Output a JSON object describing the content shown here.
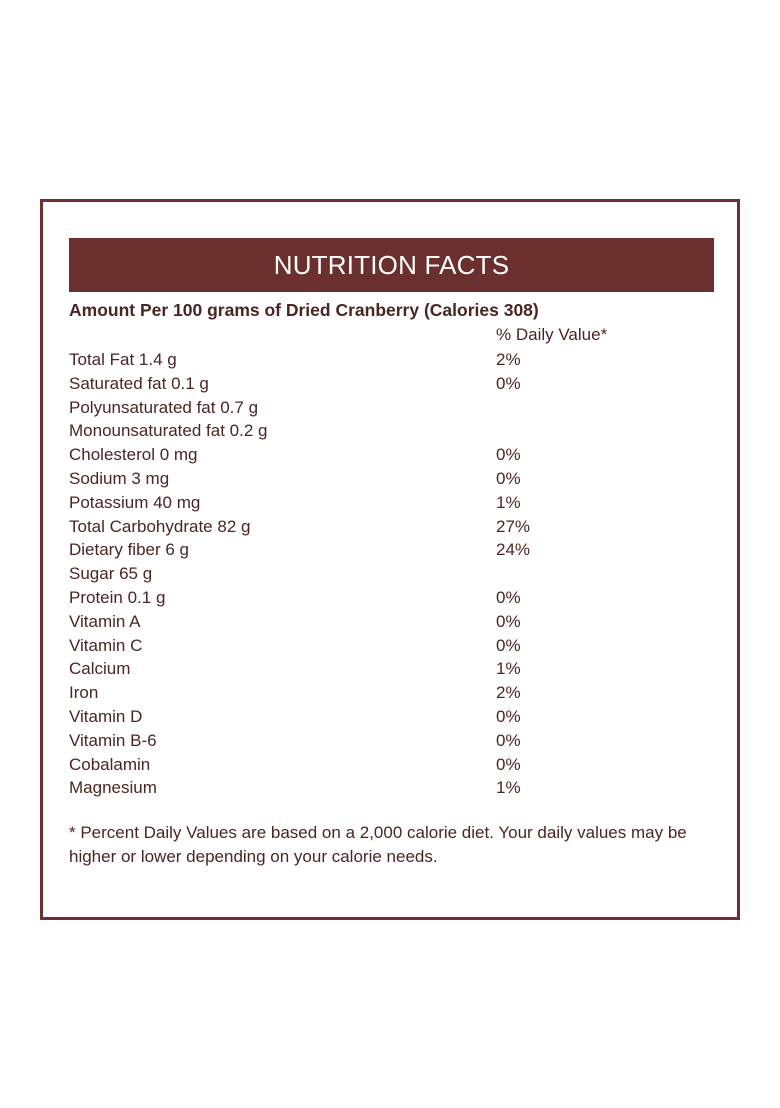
{
  "header": {
    "title": "NUTRITION FACTS"
  },
  "amount_line": "Amount Per 100 grams of Dried Cranberry (Calories 308)",
  "dv_header": "% Daily Value*",
  "rows": [
    {
      "nutrient": "Total Fat 1.4 g",
      "dv": "2%"
    },
    {
      "nutrient": "Saturated fat 0.1 g",
      "dv": "0%"
    },
    {
      "nutrient": "Polyunsaturated fat 0.7 g",
      "dv": ""
    },
    {
      "nutrient": "Monounsaturated fat 0.2 g",
      "dv": ""
    },
    {
      "nutrient": "Cholesterol 0 mg",
      "dv": "0%"
    },
    {
      "nutrient": "Sodium 3 mg",
      "dv": "0%"
    },
    {
      "nutrient": "Potassium 40 mg",
      "dv": "1%"
    },
    {
      "nutrient": "Total Carbohydrate 82 g",
      "dv": "27%"
    },
    {
      "nutrient": "Dietary fiber 6 g",
      "dv": "24%"
    },
    {
      "nutrient": "Sugar 65 g",
      "dv": ""
    },
    {
      "nutrient": "Protein 0.1 g",
      "dv": "0%"
    },
    {
      "nutrient": "Vitamin A",
      "dv": "0%"
    },
    {
      "nutrient": "Vitamin C",
      "dv": "0%"
    },
    {
      "nutrient": "Calcium",
      "dv": "1%"
    },
    {
      "nutrient": "Iron",
      "dv": "2%"
    },
    {
      "nutrient": "Vitamin D",
      "dv": "0%"
    },
    {
      "nutrient": "Vitamin B-6",
      "dv": "0%"
    },
    {
      "nutrient": "Cobalamin",
      "dv": "0%"
    },
    {
      "nutrient": "Magnesium",
      "dv": "1%"
    }
  ],
  "footnote": "* Percent Daily Values are based on a 2,000 calorie diet. Your daily values may be higher or lower depending on your calorie needs.",
  "colors": {
    "accent": "#6b302d",
    "text": "#4a2622",
    "background": "#ffffff"
  }
}
